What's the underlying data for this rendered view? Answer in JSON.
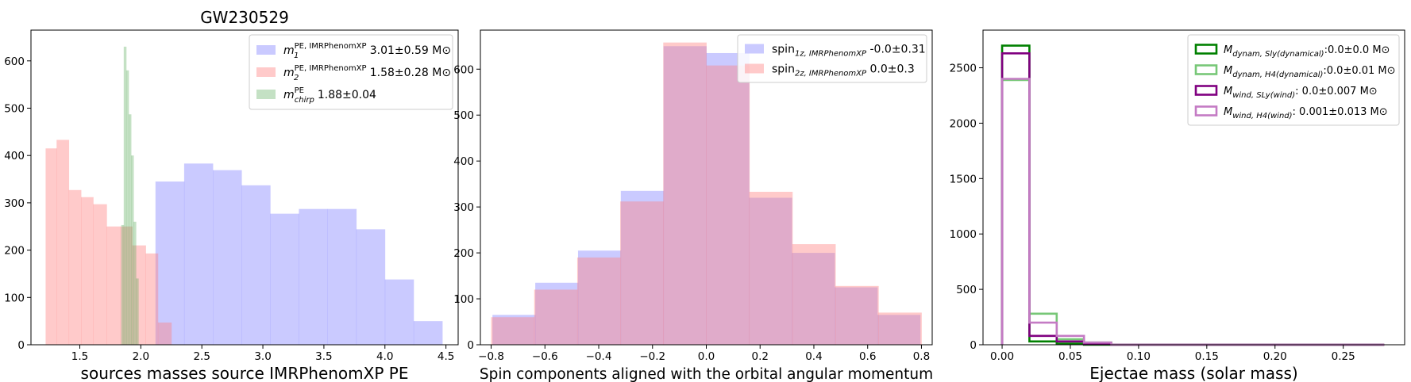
{
  "chart_data": [
    {
      "type": "histogram",
      "title": "GW230529",
      "xlabel": "sources masses source IMRPhenomXP PE",
      "ylabel": "",
      "xlim": [
        1.1,
        4.6
      ],
      "ylim": [
        0,
        665
      ],
      "xticks": [
        1.5,
        2.0,
        2.5,
        3.0,
        3.5,
        4.0,
        4.5
      ],
      "xtick_labels": [
        "1.5",
        "2.0",
        "2.5",
        "3.0",
        "3.5",
        "4.0",
        "4.5"
      ],
      "yticks": [
        0,
        100,
        200,
        300,
        400,
        500,
        600
      ],
      "ytick_labels": [
        "0",
        "100",
        "200",
        "300",
        "400",
        "500",
        "600"
      ],
      "legend_position": "top-right",
      "series": [
        {
          "label_main": "m",
          "label_sub": "1",
          "label_sup": "PE, IMRPhenomXP",
          "label_value": "3.01±0.59 M⊙",
          "color": "#8080ff",
          "opacity": 0.42,
          "edges": [
            2.12,
            2.355,
            2.59,
            2.825,
            3.06,
            3.295,
            3.53,
            3.765,
            4.0,
            4.235,
            4.47
          ],
          "values": [
            345,
            383,
            369,
            337,
            277,
            287,
            287,
            244,
            138,
            50
          ]
        },
        {
          "label_main": "m",
          "label_sub": "2",
          "label_sup": "PE, IMRPhenomXP",
          "label_value": "1.58±0.28 M⊙",
          "color": "#ff8080",
          "opacity": 0.42,
          "edges": [
            1.22,
            1.31,
            1.41,
            1.51,
            1.61,
            1.72,
            1.83,
            1.93,
            2.04,
            2.14,
            2.25
          ],
          "values": [
            415,
            433,
            327,
            312,
            297,
            250,
            250,
            210,
            193,
            47
          ]
        },
        {
          "label_main": "m",
          "label_sub": "chirp",
          "label_sup": "PE",
          "label_value": "1.88±0.04",
          "color": "#55aa55",
          "opacity": 0.35,
          "edges": [
            1.84,
            1.86,
            1.88,
            1.9,
            1.92,
            1.94,
            1.96,
            1.98
          ],
          "values": [
            253,
            630,
            580,
            487,
            400,
            260,
            140,
            40
          ]
        }
      ]
    },
    {
      "type": "histogram",
      "title": "",
      "xlabel": "Spin components aligned with the orbital angular momentum",
      "ylabel": "",
      "xlim": [
        -0.84,
        0.84
      ],
      "ylim": [
        0,
        685
      ],
      "xticks": [
        -0.8,
        -0.6,
        -0.4,
        -0.2,
        0.0,
        0.2,
        0.4,
        0.6,
        0.8
      ],
      "xtick_labels": [
        "−0.8",
        "−0.6",
        "−0.4",
        "−0.2",
        "0.0",
        "0.2",
        "0.4",
        "0.6",
        "0.8"
      ],
      "yticks": [
        0,
        100,
        200,
        300,
        400,
        500,
        600
      ],
      "ytick_labels": [
        "0",
        "100",
        "200",
        "300",
        "400",
        "500",
        "600"
      ],
      "legend_position": "top-right",
      "series": [
        {
          "label_main": "spin",
          "label_sub": "1z, IMRPhenomXP",
          "label_value": " -0.0±0.31",
          "color": "#8080ff",
          "opacity": 0.42,
          "edges": [
            -0.795,
            -0.636,
            -0.477,
            -0.318,
            -0.159,
            0.0,
            0.159,
            0.318,
            0.477,
            0.636,
            0.795
          ],
          "values": [
            65,
            135,
            205,
            335,
            650,
            635,
            320,
            200,
            125,
            65
          ]
        },
        {
          "label_main": "spin",
          "label_sub": "2z, IMRPhenomXP",
          "label_value": " 0.0±0.3",
          "color": "#ff8080",
          "opacity": 0.42,
          "edges": [
            -0.8,
            -0.64,
            -0.48,
            -0.32,
            -0.16,
            0.0,
            0.16,
            0.32,
            0.48,
            0.64,
            0.8
          ],
          "values": [
            60,
            120,
            190,
            312,
            658,
            608,
            333,
            219,
            128,
            70
          ]
        }
      ]
    },
    {
      "type": "histogram",
      "title": "",
      "xlabel": "Ejectae mass (solar mass)",
      "ylabel": "",
      "xlim": [
        -0.014,
        0.295
      ],
      "ylim": [
        0,
        2840
      ],
      "xticks": [
        0.0,
        0.05,
        0.1,
        0.15,
        0.2,
        0.25
      ],
      "xtick_labels": [
        "0.00",
        "0.05",
        "0.10",
        "0.15",
        "0.20",
        "0.25"
      ],
      "yticks": [
        0,
        500,
        1000,
        1500,
        2000,
        2500
      ],
      "ytick_labels": [
        "0",
        "500",
        "1000",
        "1500",
        "2000",
        "2500"
      ],
      "legend_position": "top-right",
      "series": [
        {
          "label_main": "M",
          "label_sub": "dynam, Sly(dynamical)",
          "label_value": ":0.0±0.0 M⊙",
          "color": "#008000",
          "style": "step",
          "edges": [
            0.0,
            0.02,
            0.04,
            0.06,
            0.08,
            0.28
          ],
          "values": [
            2700,
            30,
            10,
            0,
            0
          ]
        },
        {
          "label_main": "M",
          "label_sub": "dynam, H4(dynamical)",
          "label_value": ":0.0±0.01 M⊙",
          "color": "#77c777",
          "style": "step",
          "edges": [
            0.0,
            0.02,
            0.04,
            0.06,
            0.08,
            0.28
          ],
          "values": [
            2390,
            280,
            50,
            20,
            0
          ]
        },
        {
          "label_main": "M",
          "label_sub": "wind, SLy(wind)",
          "label_value": ": 0.0±0.007 M⊙",
          "color": "#800080",
          "style": "step",
          "edges": [
            0.0,
            0.02,
            0.04,
            0.06,
            0.08,
            0.28
          ],
          "values": [
            2630,
            80,
            30,
            5,
            0
          ]
        },
        {
          "label_main": "M",
          "label_sub": "wind, H4(wind)",
          "label_value": ": 0.001±0.013 M⊙",
          "color": "#c47bc4",
          "style": "step",
          "edges": [
            0.0,
            0.02,
            0.04,
            0.06,
            0.08,
            0.28
          ],
          "values": [
            2400,
            200,
            80,
            20,
            0
          ]
        }
      ]
    }
  ]
}
